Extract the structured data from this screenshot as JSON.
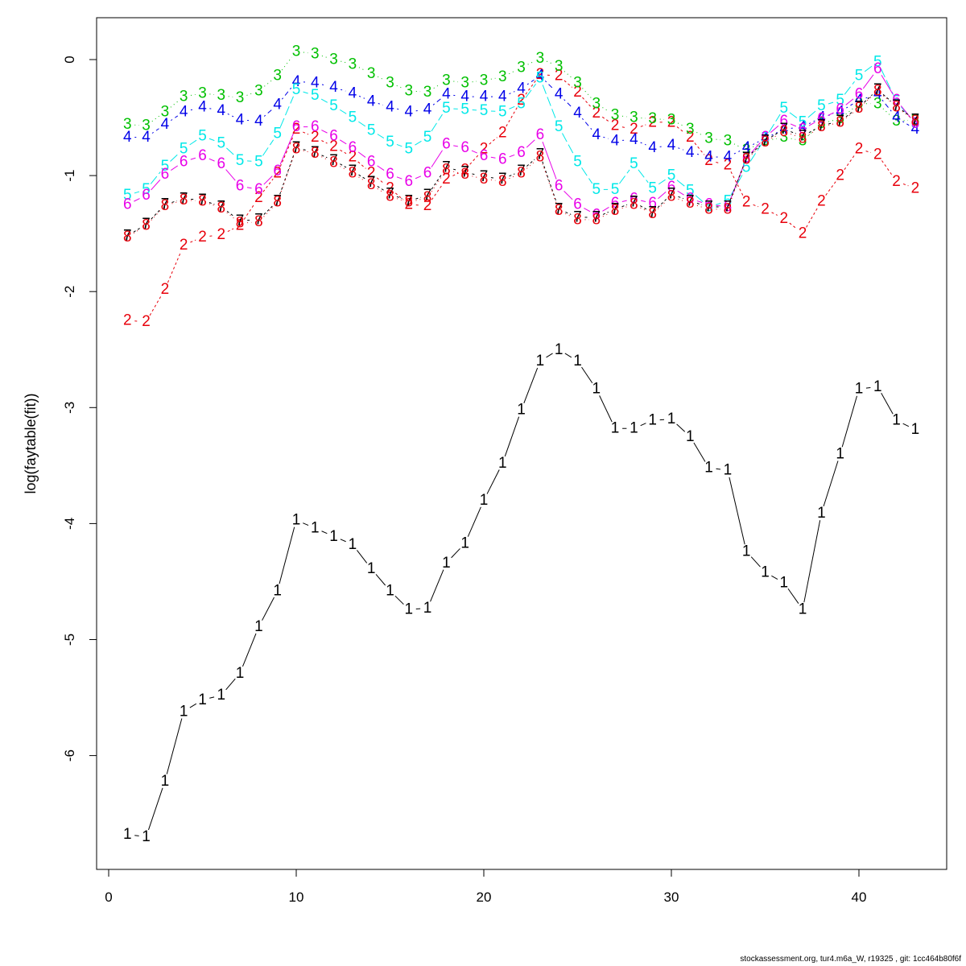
{
  "chart_data": {
    "type": "line",
    "title": "",
    "xlabel": "",
    "ylabel": "log(faytable(fit))",
    "xlim": [
      0,
      44
    ],
    "ylim": [
      -7,
      0.35
    ],
    "x_ticks": [
      0,
      10,
      20,
      30,
      40
    ],
    "y_ticks": [
      -6,
      -5,
      -4,
      -3,
      -2,
      -1,
      0
    ],
    "grid": false,
    "legend": "none",
    "x": [
      1,
      2,
      3,
      4,
      5,
      6,
      7,
      8,
      9,
      10,
      11,
      12,
      13,
      14,
      15,
      16,
      17,
      18,
      19,
      20,
      21,
      22,
      23,
      24,
      25,
      26,
      27,
      28,
      29,
      30,
      31,
      32,
      33,
      34,
      35,
      36,
      37,
      38,
      39,
      40,
      41,
      42,
      43
    ],
    "series": [
      {
        "label": "1",
        "color": "#000000",
        "dash": "solid",
        "values": [
          -6.68,
          -6.7,
          -6.22,
          -5.62,
          -5.52,
          -5.48,
          -5.29,
          -4.89,
          -4.58,
          -3.97,
          -4.04,
          -4.11,
          -4.18,
          -4.39,
          -4.58,
          -4.74,
          -4.73,
          -4.34,
          -4.17,
          -3.8,
          -3.48,
          -3.02,
          -2.6,
          -2.5,
          -2.6,
          -2.84,
          -3.18,
          -3.18,
          -3.11,
          -3.1,
          -3.25,
          -3.52,
          -3.54,
          -4.24,
          -4.42,
          -4.51,
          -4.74,
          -3.91,
          -3.4,
          -2.84,
          -2.82,
          -3.11,
          -3.19
        ]
      },
      {
        "label": "2",
        "color": "#e8000b",
        "dash": "3,3",
        "values": [
          -2.25,
          -2.26,
          -1.98,
          -1.6,
          -1.53,
          -1.51,
          -1.43,
          -1.19,
          -0.98,
          -0.6,
          -0.67,
          -0.75,
          -0.84,
          -0.98,
          -1.11,
          -1.25,
          -1.26,
          -1.03,
          -0.95,
          -0.77,
          -0.63,
          -0.35,
          -0.13,
          -0.14,
          -0.28,
          -0.46,
          -0.57,
          -0.6,
          -0.54,
          -0.54,
          -0.67,
          -0.87,
          -0.91,
          -1.23,
          -1.29,
          -1.37,
          -1.5,
          -1.22,
          -1.0,
          -0.77,
          -0.82,
          -1.05,
          -1.11
        ]
      },
      {
        "label": "3",
        "color": "#00c000",
        "dash": "1,4",
        "values": [
          -0.56,
          -0.57,
          -0.45,
          -0.32,
          -0.29,
          -0.31,
          -0.33,
          -0.27,
          -0.14,
          0.07,
          0.05,
          0.0,
          -0.04,
          -0.12,
          -0.2,
          -0.27,
          -0.28,
          -0.18,
          -0.2,
          -0.18,
          -0.15,
          -0.07,
          0.01,
          -0.06,
          -0.2,
          -0.38,
          -0.48,
          -0.5,
          -0.51,
          -0.52,
          -0.6,
          -0.68,
          -0.7,
          -0.78,
          -0.7,
          -0.67,
          -0.7,
          -0.55,
          -0.51,
          -0.38,
          -0.38,
          -0.53,
          -0.52
        ]
      },
      {
        "label": "4",
        "color": "#0000e8",
        "dash": "2,4,6,4",
        "values": [
          -0.67,
          -0.67,
          -0.56,
          -0.45,
          -0.41,
          -0.44,
          -0.52,
          -0.53,
          -0.39,
          -0.19,
          -0.2,
          -0.24,
          -0.29,
          -0.36,
          -0.41,
          -0.45,
          -0.43,
          -0.3,
          -0.32,
          -0.32,
          -0.32,
          -0.25,
          -0.14,
          -0.3,
          -0.46,
          -0.65,
          -0.7,
          -0.69,
          -0.76,
          -0.74,
          -0.8,
          -0.84,
          -0.84,
          -0.76,
          -0.68,
          -0.6,
          -0.58,
          -0.5,
          -0.45,
          -0.35,
          -0.3,
          -0.5,
          -0.6
        ]
      },
      {
        "label": "5",
        "color": "#00e8e8",
        "dash": "12,4",
        "values": [
          -1.17,
          -1.12,
          -0.92,
          -0.77,
          -0.66,
          -0.72,
          -0.87,
          -0.88,
          -0.64,
          -0.26,
          -0.31,
          -0.4,
          -0.5,
          -0.61,
          -0.71,
          -0.77,
          -0.67,
          -0.42,
          -0.43,
          -0.44,
          -0.45,
          -0.38,
          -0.16,
          -0.58,
          -0.88,
          -1.12,
          -1.12,
          -0.9,
          -1.11,
          -1.0,
          -1.13,
          -1.27,
          -1.22,
          -0.93,
          -0.68,
          -0.42,
          -0.54,
          -0.4,
          -0.35,
          -0.14,
          -0.02,
          -0.36,
          -0.55
        ]
      },
      {
        "label": "6",
        "color": "#e800e8",
        "dash": "solid",
        "values": [
          -1.25,
          -1.17,
          -0.99,
          -0.88,
          -0.83,
          -0.9,
          -1.09,
          -1.12,
          -0.96,
          -0.58,
          -0.58,
          -0.66,
          -0.76,
          -0.88,
          -0.99,
          -1.05,
          -0.98,
          -0.73,
          -0.76,
          -0.83,
          -0.86,
          -0.8,
          -0.65,
          -1.09,
          -1.25,
          -1.34,
          -1.24,
          -1.2,
          -1.24,
          -1.1,
          -1.2,
          -1.25,
          -1.27,
          -0.85,
          -0.67,
          -0.53,
          -0.6,
          -0.51,
          -0.43,
          -0.3,
          -0.08,
          -0.35,
          -0.55
        ]
      },
      {
        "label": "7",
        "color": "#000000",
        "dash": "3,3",
        "values": [
          -1.52,
          -1.42,
          -1.25,
          -1.2,
          -1.21,
          -1.27,
          -1.39,
          -1.38,
          -1.22,
          -0.76,
          -0.8,
          -0.87,
          -0.96,
          -1.06,
          -1.16,
          -1.22,
          -1.17,
          -0.93,
          -0.97,
          -1.01,
          -1.03,
          -0.96,
          -0.82,
          -1.29,
          -1.36,
          -1.36,
          -1.29,
          -1.23,
          -1.32,
          -1.16,
          -1.22,
          -1.27,
          -1.27,
          -0.85,
          -0.7,
          -0.6,
          -0.66,
          -0.57,
          -0.53,
          -0.41,
          -0.26,
          -0.4,
          -0.52
        ]
      },
      {
        "label": "8",
        "color": "#e8000b",
        "dash": "1,4",
        "values": [
          -1.53,
          -1.43,
          -1.26,
          -1.21,
          -1.22,
          -1.28,
          -1.41,
          -1.4,
          -1.23,
          -0.77,
          -0.81,
          -0.89,
          -0.98,
          -1.08,
          -1.18,
          -1.23,
          -1.19,
          -0.95,
          -0.99,
          -1.03,
          -1.05,
          -0.98,
          -0.84,
          -1.3,
          -1.38,
          -1.38,
          -1.3,
          -1.25,
          -1.33,
          -1.18,
          -1.24,
          -1.29,
          -1.29,
          -0.86,
          -0.71,
          -0.62,
          -0.68,
          -0.58,
          -0.54,
          -0.42,
          -0.27,
          -0.41,
          -0.53
        ]
      }
    ]
  },
  "footer": "stockassessment.org, tur4.m6a_W, r19325 , git: 1cc464b80f6f"
}
